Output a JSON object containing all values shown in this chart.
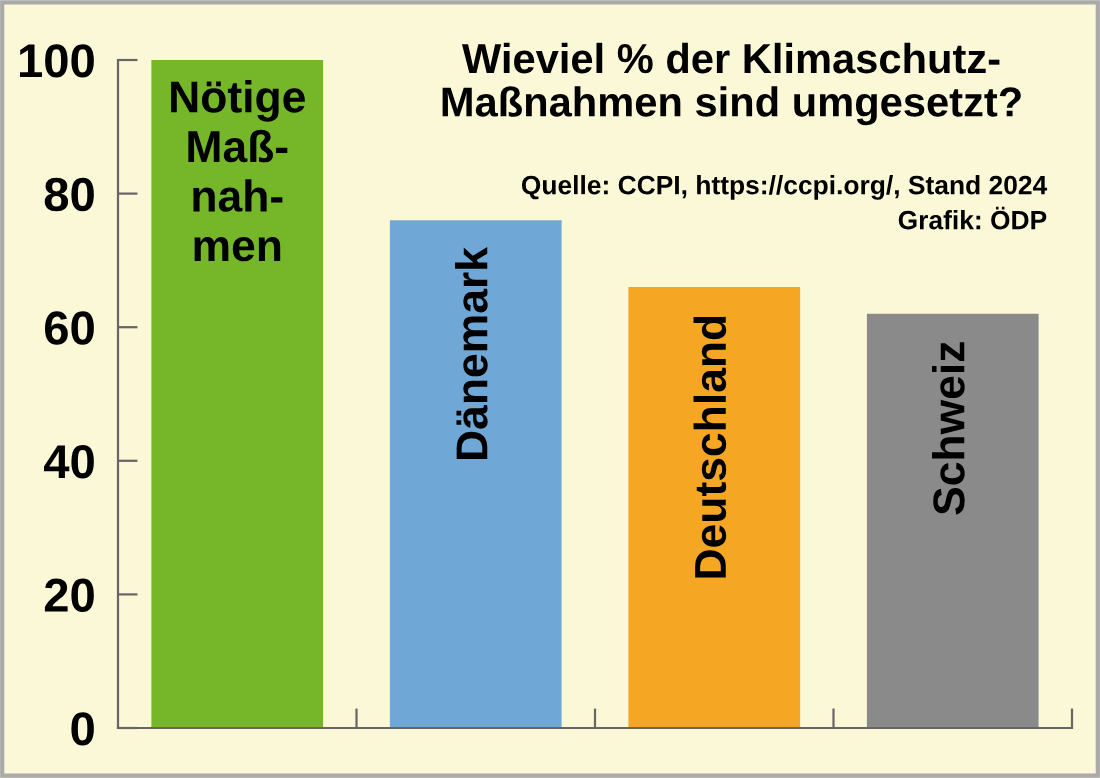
{
  "chart_data": {
    "type": "bar",
    "title": "Wieviel % der Klimaschutz-\nMaßnahmen sind umgesetzt?",
    "categories": [
      "Nötige\nMaß-\nnah-\nmen",
      "Dänemark",
      "Deutschland",
      "Schweiz"
    ],
    "values": [
      100,
      76,
      66,
      62
    ],
    "colors": [
      "#76b72a",
      "#6fa8d6",
      "#f5a623",
      "#8a8a8a"
    ],
    "ylim": [
      0,
      100
    ],
    "yticks": [
      0,
      20,
      40,
      60,
      80,
      100
    ],
    "grid": false,
    "legend": false,
    "tick_labels": "y",
    "annotations": [
      "Quelle: CCPI, https://ccpi.org/, Stand 2024",
      "Grafik: ÖDP"
    ]
  }
}
